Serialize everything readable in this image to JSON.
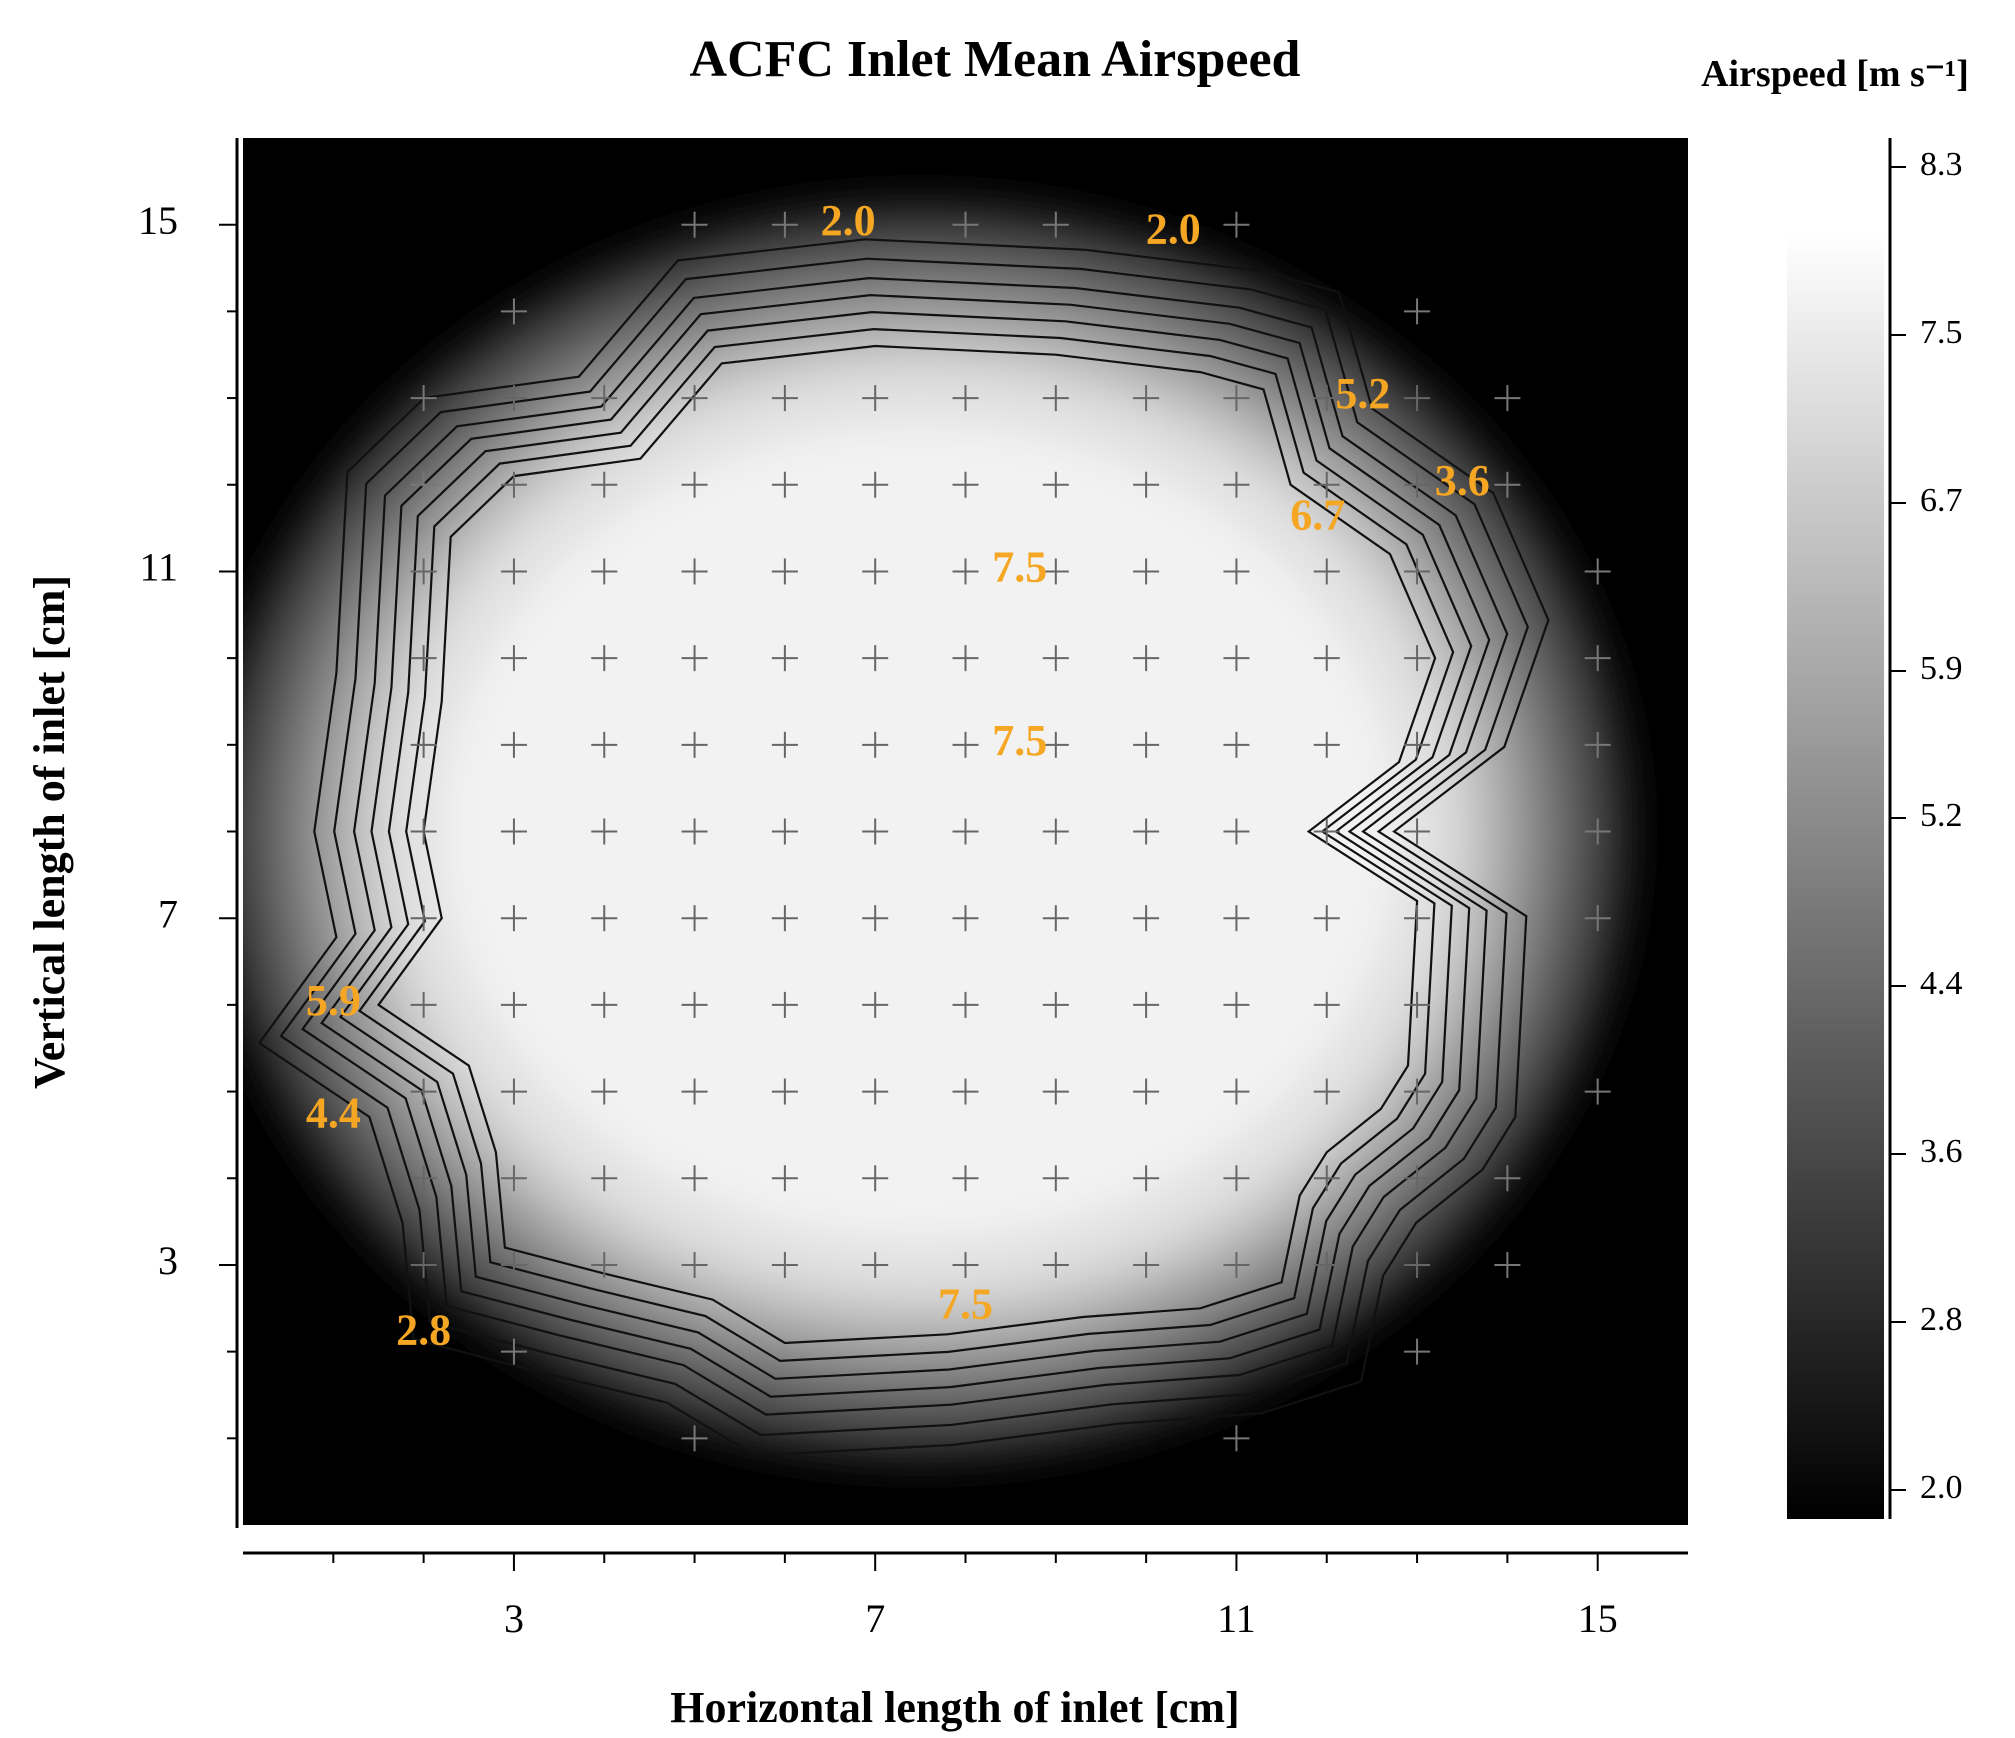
{
  "chart_data": {
    "type": "contour",
    "title": "ACFC Inlet Mean Airspeed",
    "xlabel": "Horizontal length of inlet [cm]",
    "ylabel": "Vertical length of inlet [cm]",
    "xlim": [
      0,
      16
    ],
    "ylim": [
      0,
      16
    ],
    "xticks": [
      3,
      7,
      11,
      15
    ],
    "yticks": [
      3,
      7,
      11,
      15
    ],
    "colorbar": {
      "label": "Airspeed [m s⁻¹]",
      "ticks": [
        2.0,
        2.8,
        3.6,
        4.4,
        5.2,
        5.9,
        6.7,
        7.5,
        8.3
      ],
      "range": [
        2.0,
        8.3
      ],
      "colormap": "black-to-white"
    },
    "contour_levels": [
      2.0,
      2.8,
      3.6,
      4.4,
      5.2,
      5.9,
      6.7,
      7.5
    ],
    "contour_labels": [
      {
        "text": "2.0",
        "x": 6.7,
        "y": 15.0
      },
      {
        "text": "2.0",
        "x": 10.3,
        "y": 14.9
      },
      {
        "text": "5.2",
        "x": 12.4,
        "y": 13.0
      },
      {
        "text": "3.6",
        "x": 13.5,
        "y": 12.0
      },
      {
        "text": "6.7",
        "x": 11.9,
        "y": 11.6
      },
      {
        "text": "7.5",
        "x": 8.6,
        "y": 11.0
      },
      {
        "text": "7.5",
        "x": 8.6,
        "y": 9.0
      },
      {
        "text": "5.9",
        "x": 1.0,
        "y": 6.0
      },
      {
        "text": "4.4",
        "x": 1.0,
        "y": 4.7
      },
      {
        "text": "2.8",
        "x": 2.0,
        "y": 2.2
      },
      {
        "text": "7.5",
        "x": 8.0,
        "y": 2.5
      }
    ],
    "measurement_grid": {
      "x": [
        2,
        3,
        4,
        5,
        6,
        7,
        8,
        9,
        10,
        11,
        12,
        13,
        14,
        15
      ],
      "y": [
        1,
        2,
        3,
        4,
        5,
        6,
        7,
        8,
        9,
        10,
        11,
        12,
        13,
        14,
        15
      ]
    },
    "fringe_points": [
      [
        5,
        15
      ],
      [
        6,
        15
      ],
      [
        8,
        15
      ],
      [
        9,
        15
      ],
      [
        11,
        15
      ],
      [
        3,
        14
      ],
      [
        13,
        14
      ],
      [
        2,
        13
      ],
      [
        14,
        13
      ],
      [
        2,
        12
      ],
      [
        14,
        12
      ],
      [
        15,
        11
      ],
      [
        15,
        10
      ],
      [
        15,
        9
      ],
      [
        15,
        8
      ],
      [
        15,
        7
      ],
      [
        15,
        5
      ],
      [
        14,
        4
      ],
      [
        14,
        3
      ],
      [
        3,
        2
      ],
      [
        13,
        2
      ],
      [
        5,
        1
      ],
      [
        11,
        1
      ]
    ],
    "annotation_color": "#F5A623"
  }
}
